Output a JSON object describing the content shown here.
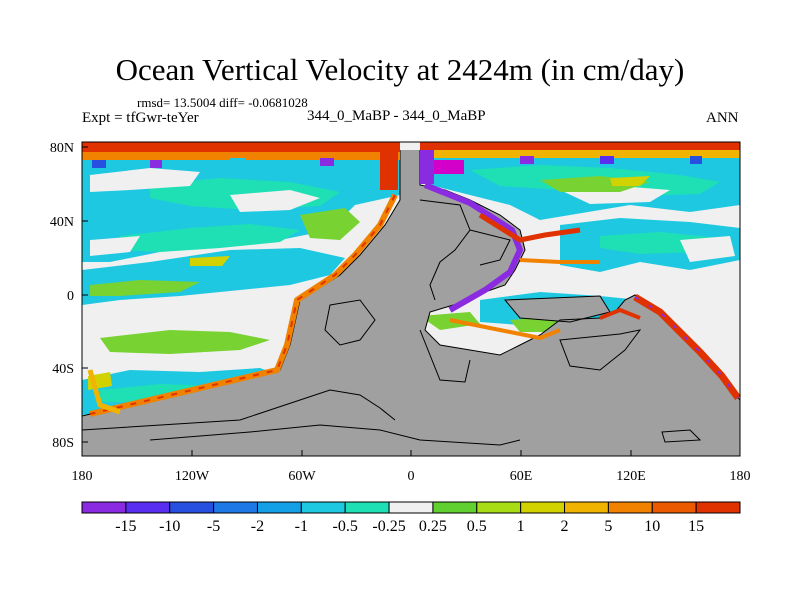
{
  "title": "Ocean Vertical Velocity at 2424m (in cm/day)",
  "stats": "rmsd= 13.5004 diff= -0.0681028",
  "experiment": "Expt = tfGwr-teYer",
  "cases": "344_0_MaBP - 344_0_MaBP",
  "season": "ANN",
  "lat_labels": [
    "80N",
    "40N",
    "0",
    "40S",
    "80S"
  ],
  "lon_labels": [
    "180",
    "120W",
    "60W",
    "0",
    "60E",
    "120E",
    "180"
  ],
  "colorbar": {
    "labels": [
      "-15",
      "-10",
      "-5",
      "-2",
      "-1",
      "-0.5",
      "-0.25",
      "0.25",
      "0.5",
      "1",
      "2",
      "5",
      "10",
      "15"
    ],
    "colors": [
      "#8a2be2",
      "#5a2ef0",
      "#2850e0",
      "#1e78e6",
      "#14a0e6",
      "#1ec8e0",
      "#1ee0b4",
      "#f0f0f0",
      "#60d030",
      "#a8dc14",
      "#d2d200",
      "#f0b400",
      "#f08200",
      "#ec5a00",
      "#e03200"
    ]
  },
  "colors": {
    "land": "#a0a0a0",
    "ocean_neutral": "#f0f0f0",
    "cyan": "#1ec8e0",
    "teal": "#1ee0b4",
    "green": "#78d232",
    "orange": "#f08200",
    "red": "#e03200",
    "purple": "#8a2be2",
    "blue": "#2850e0"
  }
}
